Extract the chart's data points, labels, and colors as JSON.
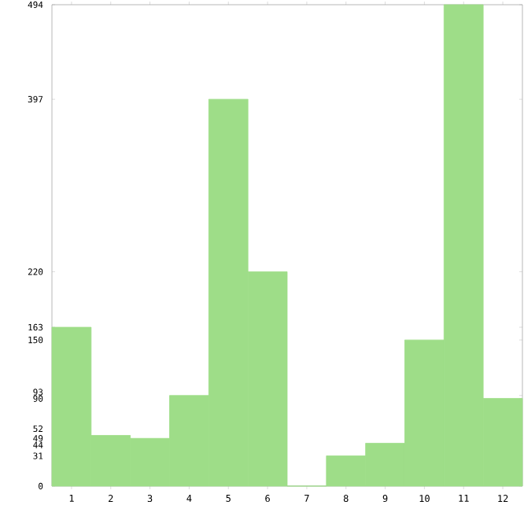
{
  "chart_data": {
    "type": "bar",
    "categories": [
      "1",
      "2",
      "3",
      "4",
      "5",
      "6",
      "7",
      "8",
      "9",
      "10",
      "11",
      "12"
    ],
    "values": [
      163,
      52,
      49,
      93,
      397,
      220,
      0,
      31,
      44,
      150,
      494,
      90
    ],
    "color": "#9edd88",
    "ylim": [
      0,
      494
    ],
    "yticks": [
      0,
      31,
      44,
      49,
      52,
      90,
      93,
      150,
      163,
      220,
      397,
      494
    ],
    "grid": false
  }
}
